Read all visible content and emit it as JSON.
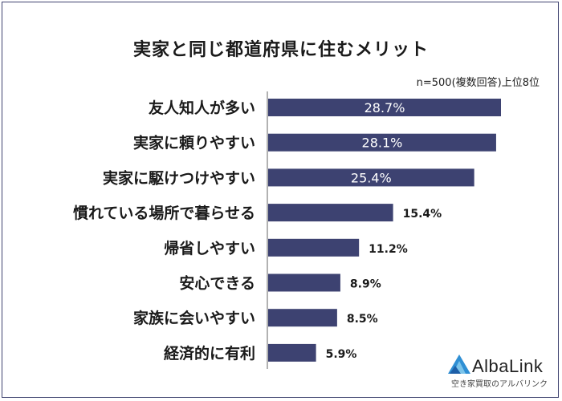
{
  "chart_data": {
    "type": "bar",
    "orientation": "horizontal",
    "title": "実家と同じ都道府県に住むメリット",
    "subtitle": "n=500(複数回答)上位8位",
    "categories": [
      "友人知人が多い",
      "実家に頼りやすい",
      "実家に駆けつけやすい",
      "慣れている場所で暮らせる",
      "帰省しやすい",
      "安心できる",
      "家族に会いやすい",
      "経済的に有利"
    ],
    "values": [
      28.7,
      28.1,
      25.4,
      15.4,
      11.2,
      8.9,
      8.5,
      5.9
    ],
    "value_labels": [
      "28.7%",
      "28.1%",
      "25.4%",
      "15.4%",
      "11.2%",
      "8.9%",
      "8.5%",
      "5.9%"
    ],
    "xlim": [
      0,
      28.7
    ],
    "bar_color": "#3d4271",
    "grid": false,
    "legend": "none"
  },
  "logo": {
    "name": "AlbaLink",
    "tagline": "空き家買取のアルバリンク",
    "colors": [
      "#2f8fd4",
      "#7cc4ea",
      "#1d5fa8"
    ]
  }
}
